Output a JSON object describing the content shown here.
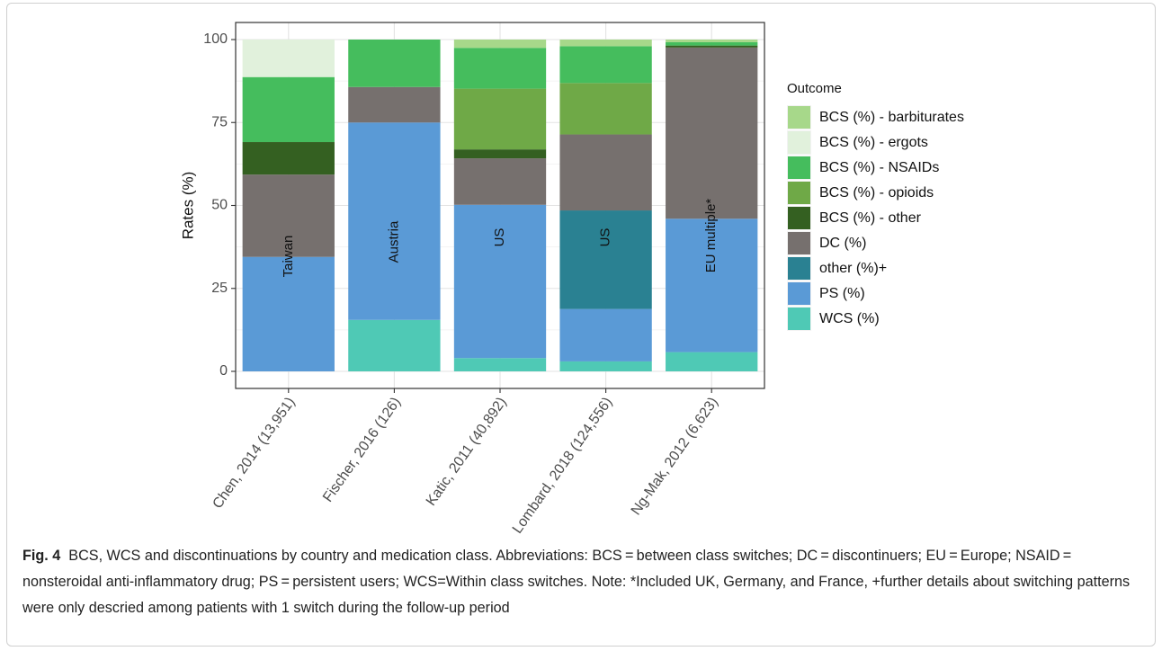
{
  "chart_data": {
    "type": "bar",
    "stacked": true,
    "ylabel": "Rates (%)",
    "xlabel": "",
    "ylim": [
      0,
      100
    ],
    "yticks": [
      0,
      25,
      50,
      75,
      100
    ],
    "grid": true,
    "legend_position": "right",
    "legend_title": "Outcome",
    "categories": [
      "Chen, 2014 (13,951)",
      "Fischer, 2016 (126)",
      "Katic, 2011 (40,892)",
      "Lombard, 2018 (124,556)",
      "Ng-Mak, 2012 (6,623)"
    ],
    "bar_labels": [
      "Taiwan",
      "Austria",
      "US",
      "US",
      "EU multiple*"
    ],
    "legend": [
      "BCS (%) - barbiturates",
      "BCS (%) - ergots",
      "BCS (%) - NSAIDs",
      "BCS (%) - opioids",
      "BCS (%) - other",
      "DC (%)",
      "other (%)+",
      "PS (%)",
      "WCS (%)"
    ],
    "series": [
      {
        "name": "WCS (%)",
        "color": "#4fc9b5",
        "values": [
          0,
          15.5,
          4,
          3,
          5.8
        ]
      },
      {
        "name": "PS (%)",
        "color": "#5a9ad6",
        "values": [
          34.5,
          59.5,
          46.2,
          15.8,
          40.2
        ]
      },
      {
        "name": "other (%)+",
        "color": "#2a8192",
        "values": [
          0,
          0,
          0,
          29.7,
          0
        ]
      },
      {
        "name": "DC (%)",
        "color": "#76706e",
        "values": [
          24.8,
          10.7,
          14,
          22.9,
          51.6
        ]
      },
      {
        "name": "BCS (%) - other",
        "color": "#346021",
        "values": [
          9.8,
          0,
          2.7,
          0,
          0.6
        ]
      },
      {
        "name": "BCS (%) - opioids",
        "color": "#6fa947",
        "values": [
          0,
          0,
          18.3,
          15.5,
          0
        ]
      },
      {
        "name": "BCS (%) - NSAIDs",
        "color": "#45bd5d",
        "values": [
          19.6,
          14.3,
          12.3,
          11.1,
          1.0
        ]
      },
      {
        "name": "BCS (%) - ergots",
        "color": "#e1f1dc",
        "values": [
          11.3,
          0,
          0,
          0,
          0
        ]
      },
      {
        "name": "BCS (%) - barbiturates",
        "color": "#a7d88a",
        "values": [
          0,
          0,
          2.5,
          2,
          0.8
        ]
      }
    ]
  },
  "caption": {
    "fig_label": "Fig. 4",
    "text": "BCS, WCS and discontinuations by country and medication class. Abbreviations: BCS = between class switches; DC = discontinuers; EU = Europe; NSAID = nonsteroidal anti-inflammatory drug; PS = persistent users; WCS=Within class switches. Note: *Included UK, Germany, and France, +further details about switching patterns were only descried among patients with 1 switch during the follow-up period"
  }
}
